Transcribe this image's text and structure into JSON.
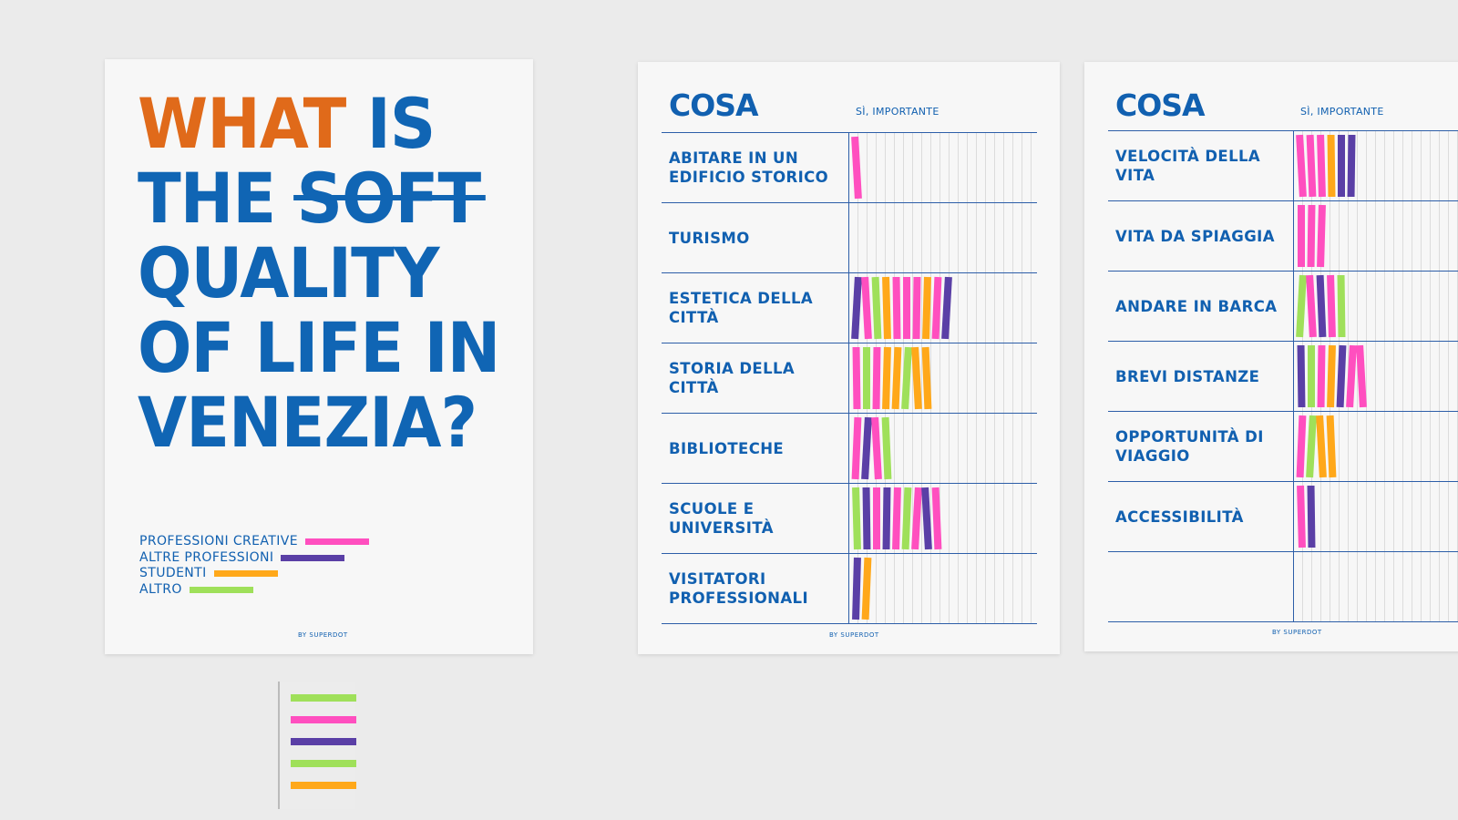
{
  "colors": {
    "p": "#ff4fbf",
    "v": "#5a3fa6",
    "o": "#ffa81a",
    "g": "#9fe05a",
    "orange": "#e06a1a",
    "blue": "#1160b0"
  },
  "poster1": {
    "title": {
      "what": "WHAT",
      "is": "IS",
      "the": "THE",
      "soft": "SOFT",
      "line3": "QUALITY",
      "line4": "OF LIFE IN",
      "line5": "VENEZIA?"
    },
    "legend": [
      {
        "label": "PROFESSIONI CREATIVE",
        "code": "p"
      },
      {
        "label": "ALTRE PROFESSIONI",
        "code": "v"
      },
      {
        "label": "STUDENTI",
        "code": "o"
      },
      {
        "label": "ALTRO",
        "code": "g"
      }
    ],
    "credit": "BY SUPERDOT"
  },
  "poster2": {
    "heading": "COSA",
    "column": "SÌ, IMPORTANTE",
    "credit": "BY SUPERDOT",
    "rows": [
      {
        "label": "ABITARE IN UN\nEDIFICIO STORICO",
        "votes": "p"
      },
      {
        "label": "TURISMO",
        "votes": ""
      },
      {
        "label": "ESTETICA DELLA CITTÀ",
        "votes": "vpgopppopv"
      },
      {
        "label": "STORIA DELLA CITTÀ",
        "votes": "pgpoogoo"
      },
      {
        "label": "BIBLIOTECHE",
        "votes": "pvpg"
      },
      {
        "label": "SCUOLE E\nUNIVERSITÀ",
        "votes": "gvpvpgpvp"
      },
      {
        "label": "VISITATORI\nPROFESSIONALI",
        "votes": "vo"
      }
    ]
  },
  "poster3": {
    "heading": "COSA",
    "column": "SÌ, IMPORTANTE",
    "credit": "BY SUPERDOT",
    "rows": [
      {
        "label": "VELOCITÀ DELLA VITA",
        "votes": "pppovv"
      },
      {
        "label": "VITA DA SPIAGGIA",
        "votes": "ppp"
      },
      {
        "label": "ANDARE IN BARCA",
        "votes": "gpvpg"
      },
      {
        "label": "BREVI DISTANZE",
        "votes": "vgpovpp"
      },
      {
        "label": "OPPORTUNITÀ DI\nVIAGGIO",
        "votes": "pgoo"
      },
      {
        "label": "ACCESSIBILITÀ",
        "votes": "pv"
      },
      {
        "label": "",
        "votes": ""
      }
    ]
  },
  "ruler": [
    "g",
    "p",
    "v",
    "g",
    "o"
  ]
}
